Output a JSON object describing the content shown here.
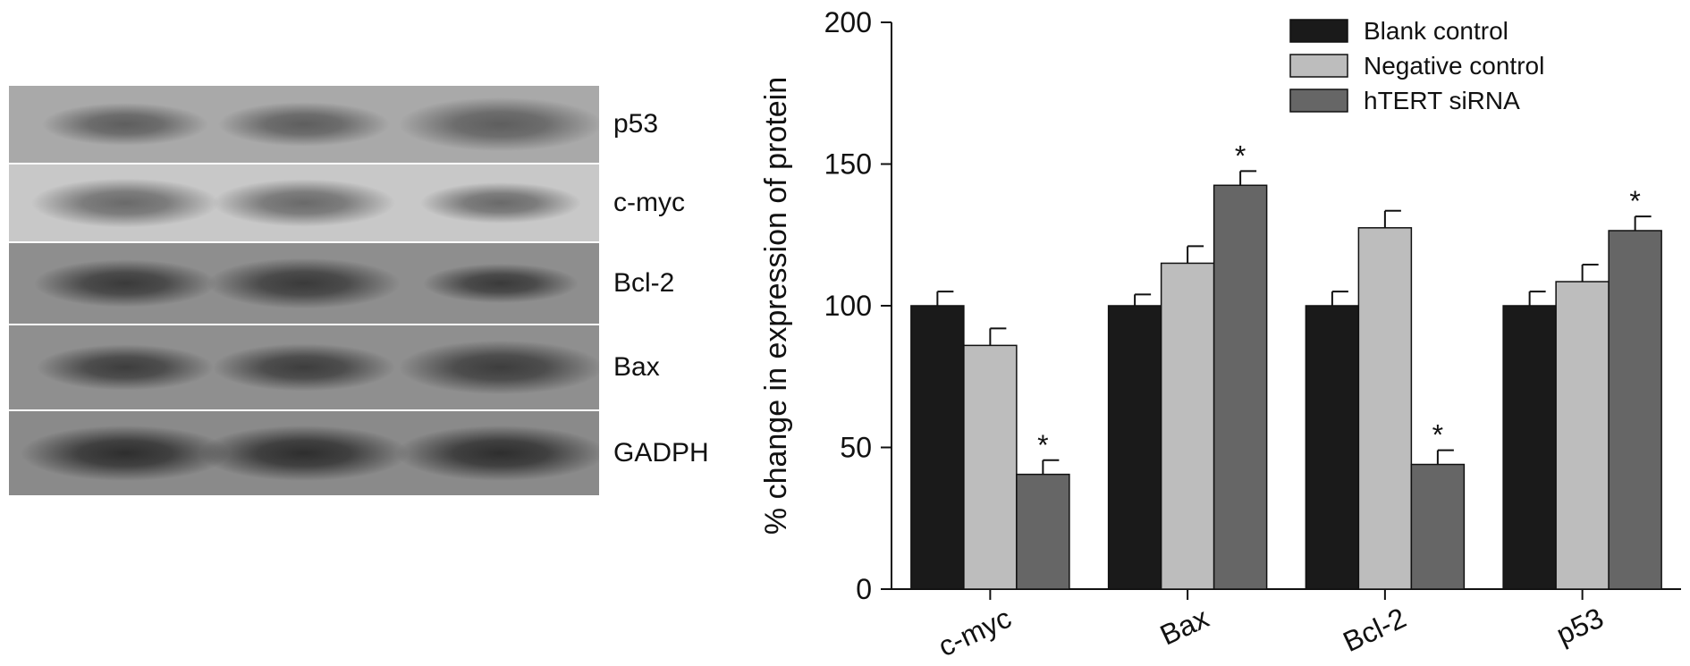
{
  "blot": {
    "bands": [
      {
        "label": "p53",
        "background": "#a9a9a9",
        "band_color": "#5e5e5e",
        "intensity": [
          0.55,
          0.6,
          0.9
        ]
      },
      {
        "label": "c-myc",
        "background": "#c8c8c8",
        "band_color": "#6a6a6a",
        "intensity": [
          0.75,
          0.7,
          0.5
        ]
      },
      {
        "label": "Bcl-2",
        "background": "#8e8e8e",
        "band_color": "#3a3a3a",
        "intensity": [
          0.7,
          0.8,
          0.45
        ]
      },
      {
        "label": "Bax",
        "background": "#8f8f8f",
        "band_color": "#3d3d3d",
        "intensity": [
          0.65,
          0.7,
          0.9
        ]
      },
      {
        "label": "GADPH",
        "background": "#8a8a8a",
        "band_color": "#2e2e2e",
        "intensity": [
          0.95,
          0.95,
          0.95
        ]
      }
    ]
  },
  "chart_data": {
    "type": "bar",
    "ylabel": "% change in expression of protein",
    "xlabel": "",
    "ylim": [
      0,
      200
    ],
    "yticks": [
      0,
      50,
      100,
      150,
      200
    ],
    "categories": [
      "c-myc",
      "Bax",
      "Bcl-2",
      "p53"
    ],
    "series": [
      {
        "name": "Blank control",
        "color": "#1a1a1a",
        "values": [
          100,
          100,
          100,
          100
        ],
        "errors": [
          5,
          4,
          5,
          5
        ]
      },
      {
        "name": "Negative control",
        "color": "#bdbdbd",
        "values": [
          86,
          115,
          127.5,
          108.5
        ],
        "errors": [
          6,
          6,
          6,
          6
        ]
      },
      {
        "name": "hTERT siRNA",
        "color": "#666666",
        "values": [
          40.5,
          142.5,
          44,
          126.5
        ],
        "errors": [
          5,
          5,
          5,
          5
        ]
      }
    ],
    "significance": [
      {
        "series": 2,
        "category": 0,
        "text": "*"
      },
      {
        "series": 2,
        "category": 1,
        "text": "*"
      },
      {
        "series": 2,
        "category": 2,
        "text": "*"
      },
      {
        "series": 2,
        "category": 3,
        "text": "*"
      }
    ],
    "grid": false,
    "legend_position": "top-right"
  }
}
